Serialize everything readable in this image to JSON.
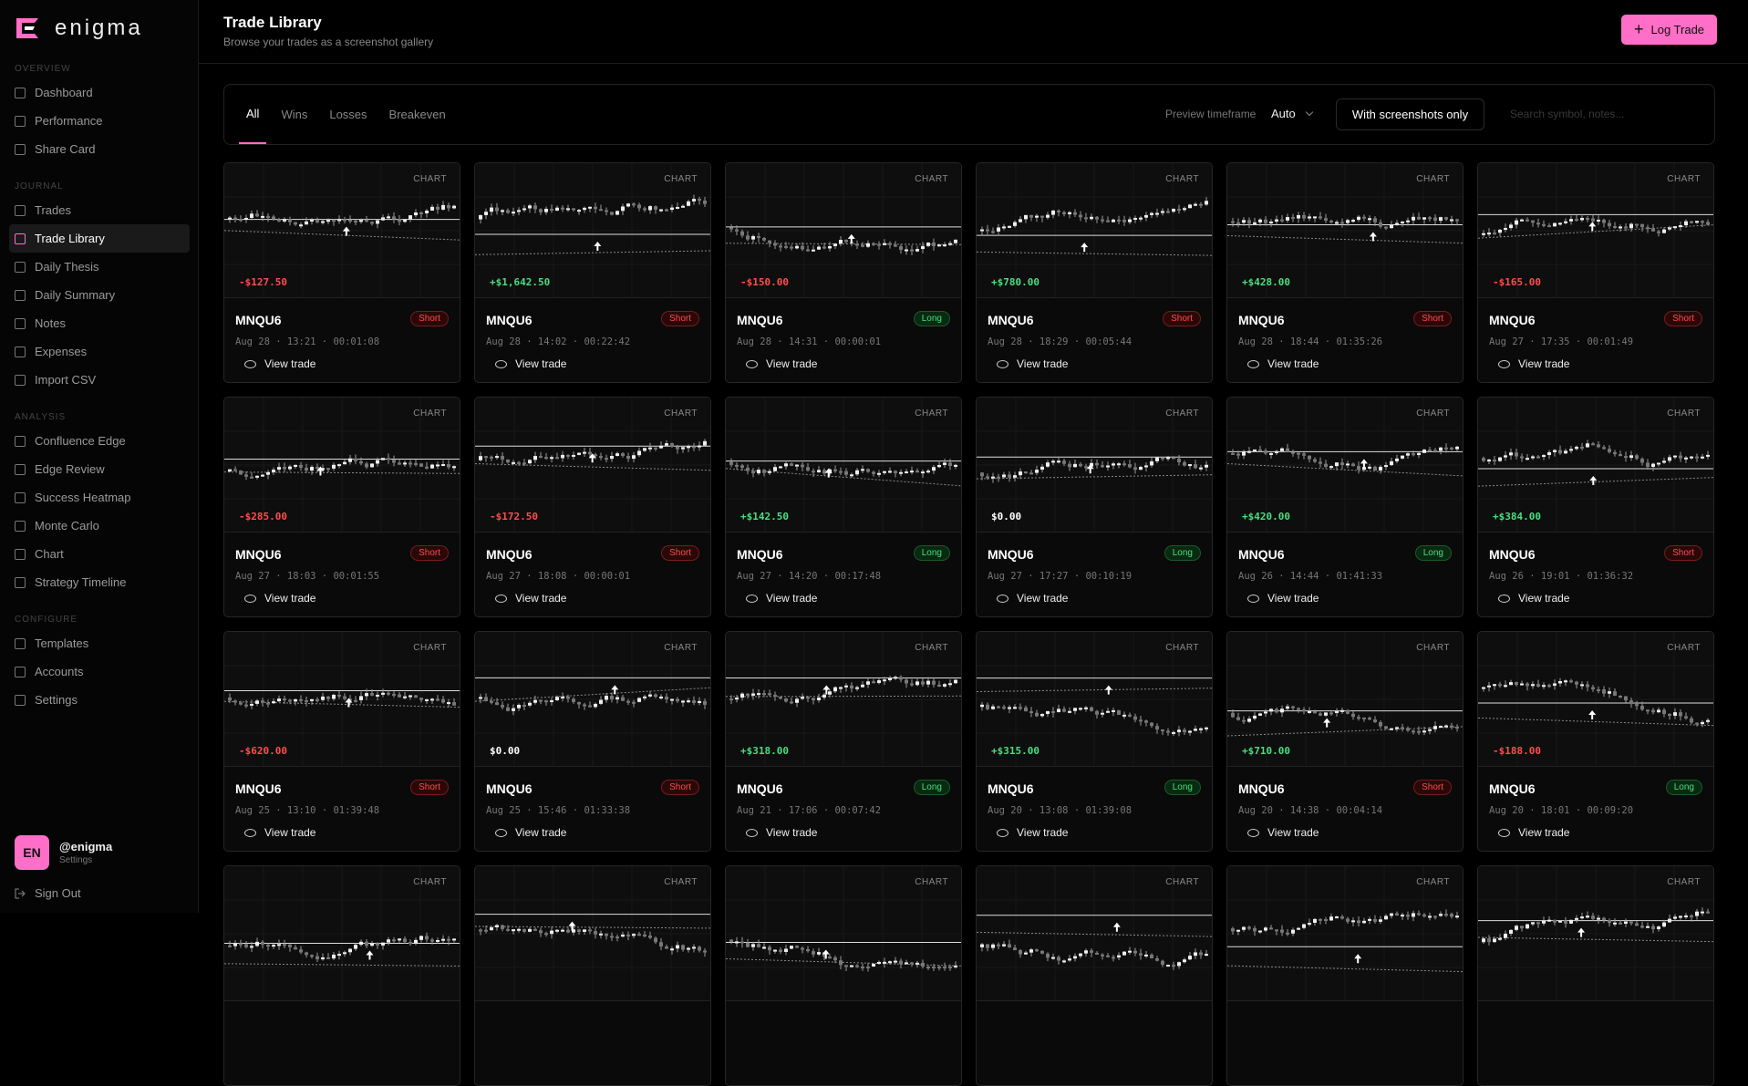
{
  "sidebar": {
    "brand": "enigma",
    "sections": [
      {
        "title": "OVERVIEW",
        "items": [
          {
            "label": "Dashboard"
          },
          {
            "label": "Performance"
          },
          {
            "label": "Share Card"
          }
        ]
      },
      {
        "title": "JOURNAL",
        "items": [
          {
            "label": "Trades"
          },
          {
            "label": "Trade Library",
            "active": true
          },
          {
            "label": "Daily Thesis"
          },
          {
            "label": "Daily Summary"
          },
          {
            "label": "Notes"
          },
          {
            "label": "Expenses"
          },
          {
            "label": "Import CSV"
          }
        ]
      },
      {
        "title": "ANALYSIS",
        "items": [
          {
            "label": "Confluence Edge"
          },
          {
            "label": "Edge Review"
          },
          {
            "label": "Success Heatmap"
          },
          {
            "label": "Monte Carlo"
          },
          {
            "label": "Chart"
          },
          {
            "label": "Strategy Timeline"
          }
        ]
      },
      {
        "title": "CONFIGURE",
        "items": [
          {
            "label": "Templates"
          },
          {
            "label": "Accounts"
          },
          {
            "label": "Settings"
          }
        ]
      }
    ],
    "user": {
      "initials": "EN",
      "handle": "@enigma",
      "sub": "Settings"
    },
    "sign_out": "Sign Out"
  },
  "header": {
    "title": "Trade Library",
    "subtitle": "Browse your trades as a screenshot gallery",
    "button_icon": "+",
    "button": "Log Trade"
  },
  "filters": {
    "tabs": [
      {
        "label": "All",
        "active": true
      },
      {
        "label": "Wins"
      },
      {
        "label": "Losses"
      },
      {
        "label": "Breakeven"
      }
    ],
    "preview_label": "Preview timeframe",
    "preview_value": "Auto",
    "screenshots_toggle": "With screenshots only",
    "search_placeholder": "Search symbol, notes..."
  },
  "cards": [
    {
      "badge": "CHART",
      "symbol": "MNQU6",
      "side": "Short",
      "pnl": "-$127.50",
      "meta": "Aug 28 · 13:21 · 00:01:08",
      "action": "View trade"
    },
    {
      "badge": "CHART",
      "symbol": "MNQU6",
      "side": "Short",
      "pnl": "+$1,642.50",
      "meta": "Aug 28 · 14:02 · 00:22:42",
      "action": "View trade"
    },
    {
      "badge": "CHART",
      "symbol": "MNQU6",
      "side": "Long",
      "pnl": "-$150.00",
      "meta": "Aug 28 · 14:31 · 00:00:01",
      "action": "View trade"
    },
    {
      "badge": "CHART",
      "symbol": "MNQU6",
      "side": "Short",
      "pnl": "+$780.00",
      "meta": "Aug 28 · 18:29 · 00:05:44",
      "action": "View trade"
    },
    {
      "badge": "CHART",
      "symbol": "MNQU6",
      "side": "Short",
      "pnl": "+$428.00",
      "meta": "Aug 28 · 18:44 · 01:35:26",
      "action": "View trade"
    },
    {
      "badge": "CHART",
      "symbol": "MNQU6",
      "side": "Short",
      "pnl": "-$165.00",
      "meta": "Aug 27 · 17:35 · 00:01:49",
      "action": "View trade"
    },
    {
      "badge": "CHART",
      "symbol": "MNQU6",
      "side": "Short",
      "pnl": "-$285.00",
      "meta": "Aug 27 · 18:03 · 00:01:55",
      "action": "View trade"
    },
    {
      "badge": "CHART",
      "symbol": "MNQU6",
      "side": "Short",
      "pnl": "-$172.50",
      "meta": "Aug 27 · 18:08 · 00:00:01",
      "action": "View trade"
    },
    {
      "badge": "CHART",
      "symbol": "MNQU6",
      "side": "Long",
      "pnl": "+$142.50",
      "meta": "Aug 27 · 14:20 · 00:17:48",
      "action": "View trade"
    },
    {
      "badge": "CHART",
      "symbol": "MNQU6",
      "side": "Long",
      "pnl": "$0.00",
      "meta": "Aug 27 · 17:27 · 00:10:19",
      "action": "View trade"
    },
    {
      "badge": "CHART",
      "symbol": "MNQU6",
      "side": "Long",
      "pnl": "+$420.00",
      "meta": "Aug 26 · 14:44 · 01:41:33",
      "action": "View trade"
    },
    {
      "badge": "CHART",
      "symbol": "MNQU6",
      "side": "Short",
      "pnl": "+$384.00",
      "meta": "Aug 26 · 19:01 · 01:36:32",
      "action": "View trade"
    },
    {
      "badge": "CHART",
      "symbol": "MNQU6",
      "side": "Short",
      "pnl": "-$620.00",
      "meta": "Aug 25 · 13:10 · 01:39:48",
      "action": "View trade"
    },
    {
      "badge": "CHART",
      "symbol": "MNQU6",
      "side": "Short",
      "pnl": "$0.00",
      "meta": "Aug 25 · 15:46 · 01:33:38",
      "action": "View trade"
    },
    {
      "badge": "CHART",
      "symbol": "MNQU6",
      "side": "Long",
      "pnl": "+$318.00",
      "meta": "Aug 21 · 17:06 · 00:07:42",
      "action": "View trade"
    },
    {
      "badge": "CHART",
      "symbol": "MNQU6",
      "side": "Long",
      "pnl": "+$315.00",
      "meta": "Aug 20 · 13:08 · 01:39:08",
      "action": "View trade"
    },
    {
      "badge": "CHART",
      "symbol": "MNQU6",
      "side": "Short",
      "pnl": "+$710.00",
      "meta": "Aug 20 · 14:38 · 00:04:14",
      "action": "View trade"
    },
    {
      "badge": "CHART",
      "symbol": "MNQU6",
      "side": "Long",
      "pnl": "-$188.00",
      "meta": "Aug 20 · 18:01 · 00:09:20",
      "action": "View trade"
    },
    {
      "badge": "CHART"
    },
    {
      "badge": "CHART"
    },
    {
      "badge": "CHART"
    },
    {
      "badge": "CHART"
    },
    {
      "badge": "CHART"
    },
    {
      "badge": "CHART"
    }
  ]
}
